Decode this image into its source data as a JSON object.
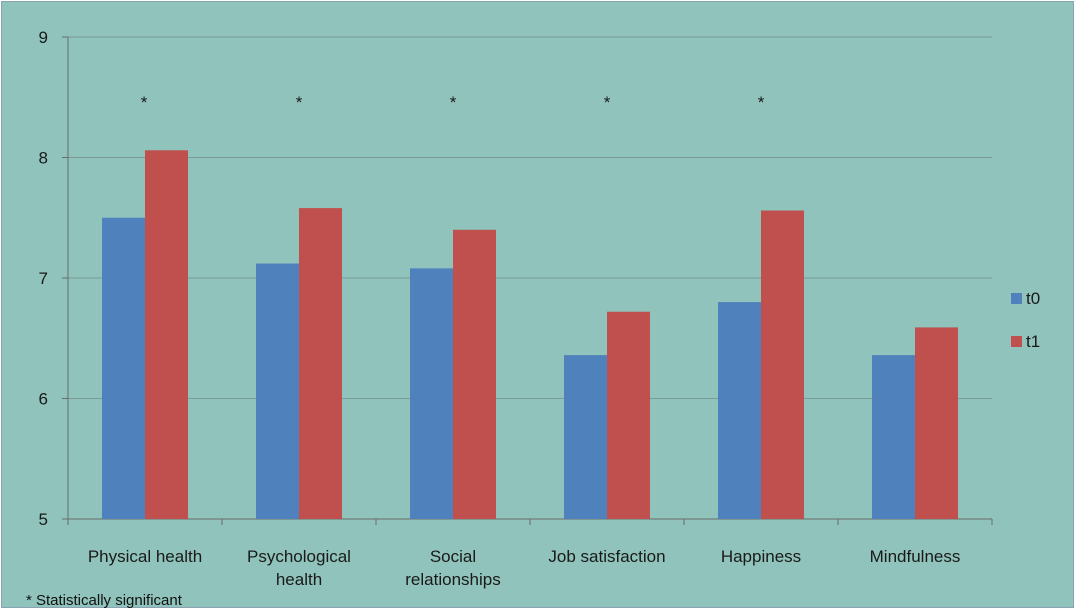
{
  "chart_data": {
    "type": "bar",
    "categories": [
      [
        "Physical health"
      ],
      [
        "Psychological",
        "health"
      ],
      [
        "Social",
        "relationships"
      ],
      [
        "Job satisfaction"
      ],
      [
        "Happiness"
      ],
      [
        "Mindfulness"
      ]
    ],
    "series": [
      {
        "name": "t0",
        "color": "#4f81bd",
        "values": [
          7.5,
          7.12,
          7.08,
          6.36,
          6.8,
          6.36
        ]
      },
      {
        "name": "t1",
        "color": "#c0504d",
        "values": [
          8.06,
          7.58,
          7.4,
          6.72,
          7.56,
          6.59
        ]
      }
    ],
    "significance_marks": [
      "*",
      "*",
      "*",
      "*",
      "*",
      ""
    ],
    "footnote": "* Statistically significant",
    "ylim": [
      5,
      9
    ],
    "yticks": [
      5,
      6,
      7,
      8,
      9
    ],
    "grid": true,
    "legend_position": "right",
    "background_color": "#8fc3bb",
    "gridline_color": "#7a9a98"
  }
}
